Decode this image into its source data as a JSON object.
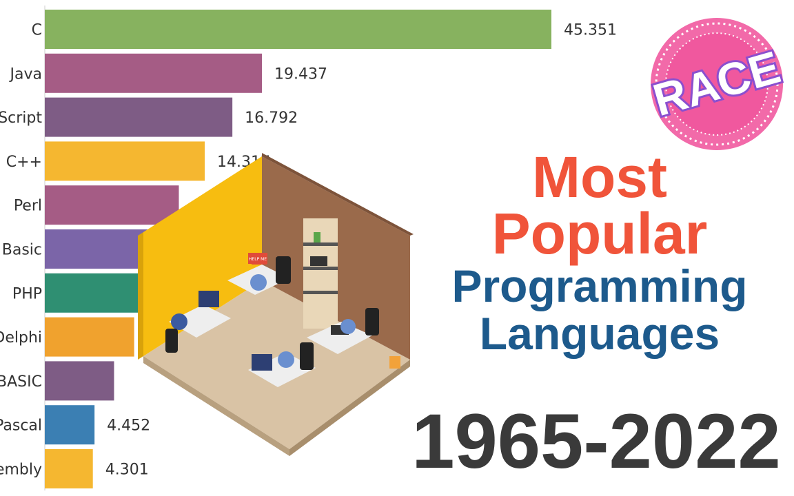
{
  "chart_data": {
    "type": "bar",
    "orientation": "horizontal",
    "categories": [
      "C",
      "Java",
      "Script",
      "C++",
      "Perl",
      "Basic",
      "PHP",
      "Delphi",
      "BASIC",
      "Pascal",
      "embly"
    ],
    "values": [
      45.351,
      19.437,
      16.792,
      14.317,
      12.0,
      10.0,
      8.8,
      8.0,
      6.2,
      4.452,
      4.301
    ],
    "value_labels": [
      "45.351",
      "19.437",
      "16.792",
      "14.317",
      "",
      "",
      "",
      "",
      "",
      "4.452",
      "4.301"
    ],
    "colors": [
      "#87b25f",
      "#a55c85",
      "#7e5c85",
      "#f5b730",
      "#a55c85",
      "#7b65a8",
      "#2f8f72",
      "#f0a22e",
      "#7e5c85",
      "#3b7fb3",
      "#f5b730"
    ],
    "xlim": [
      0,
      50
    ],
    "grid": false,
    "legend": "none"
  },
  "title": {
    "line1": "Most",
    "line2": "Popular",
    "line3": "Programming",
    "line4": "Languages",
    "years": "1965-2022"
  },
  "badge": {
    "text": "RACE",
    "color": "#f0589e",
    "text_color": "#8b4fcf"
  },
  "illustration": {
    "sign_text": "HELP ME"
  }
}
